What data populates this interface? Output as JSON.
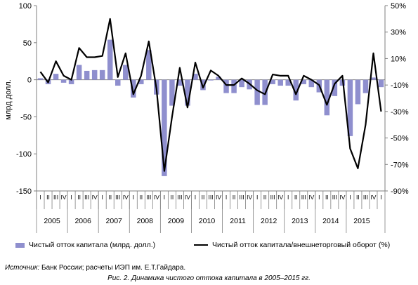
{
  "chart_data": {
    "type": "bar",
    "ylabel": "млрд долл.",
    "ylim": [
      -150,
      100
    ],
    "y_ticks": [
      "100",
      "50",
      "0",
      "-50",
      "-100",
      "-150"
    ],
    "y2lim": [
      -90,
      50
    ],
    "y2_ticks": [
      "50%",
      "30%",
      "10%",
      "-10%",
      "-30%",
      "-50%",
      "-70%",
      "-90%"
    ],
    "quarters": [
      "I",
      "II",
      "III",
      "IV"
    ],
    "years": [
      "2005",
      "2006",
      "2007",
      "2008",
      "2009",
      "2010",
      "2011",
      "2012",
      "2013",
      "2014",
      "2015"
    ],
    "series": [
      {
        "name": "Чистый отток капитала (млрд. долл.)",
        "type": "bar",
        "axis": "left",
        "color": "#8f8fce",
        "values": [
          2,
          -6,
          8,
          -4,
          -6,
          20,
          12,
          13,
          13,
          54,
          -8,
          20,
          -24,
          -6,
          40,
          -20,
          -130,
          -35,
          -8,
          -35,
          8,
          -14,
          -1,
          4,
          -18,
          -18,
          -10,
          -13,
          -34,
          -34,
          -6,
          -8,
          -8,
          -28,
          -6,
          -10,
          -17,
          -48,
          -22,
          -8,
          -76,
          -33,
          -18,
          3,
          -10
        ]
      },
      {
        "name": "Чистый отток капитала/внешнеторговый оборот (%)",
        "type": "line",
        "axis": "right",
        "color": "#000000",
        "values": [
          0,
          -8,
          8,
          -3,
          -6,
          18,
          11,
          11,
          12,
          40,
          -4,
          14,
          -17,
          -3,
          23,
          -13,
          -75,
          -34,
          3,
          -27,
          7,
          -12,
          1,
          -3,
          -10,
          -10,
          -5,
          -9,
          -14,
          -17,
          -2,
          -3,
          -3,
          -17,
          -3,
          -6,
          -10,
          -25,
          -9,
          -3,
          -58,
          -73,
          -40,
          14,
          -30
        ]
      }
    ],
    "grid": false,
    "legend_position": "bottom"
  },
  "legend": {
    "bar_label": "Чистый отток капитала (млрд. долл.)",
    "line_label": "Чистый отток капитала/внешнеторговый оборот (%)"
  },
  "source": {
    "label": "Источник:",
    "text": " Банк России; расчеты ИЭП им. Е.Т.Гайдара."
  },
  "caption": "Рис. 2. Динамика чистого оттока капитала в 2005–2015 гг."
}
